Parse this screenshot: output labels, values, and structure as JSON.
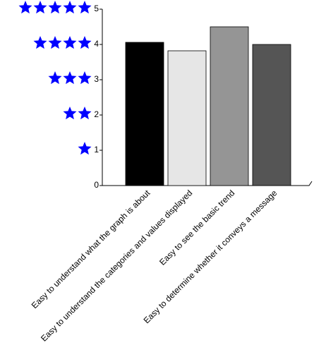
{
  "chart_data": {
    "type": "bar",
    "categories": [
      "Easy to understand what the graph is about",
      "Easy to understand the categories and values displayed",
      "Easy to see the basic trend",
      "Easy to determine whether it conveys a message"
    ],
    "values": [
      4.06,
      3.82,
      4.5,
      4.0
    ],
    "colors": [
      "#000000",
      "#e6e6e6",
      "#959595",
      "#555555"
    ],
    "ylim": [
      0,
      5
    ],
    "yticks": [
      0,
      1,
      2,
      3,
      4,
      5
    ],
    "star_color": "#0000ff",
    "grid": false
  }
}
